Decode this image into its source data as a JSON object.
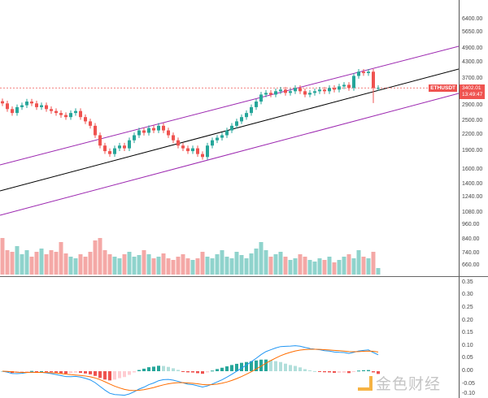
{
  "symbol": "ETHUSDT",
  "current_price": "3402.01",
  "countdown": "13:49:47",
  "price_axis": [
    "7800.00",
    "6400.00",
    "5650.00",
    "4900.00",
    "4300.00",
    "3700.00",
    "2900.00",
    "2500.00",
    "2200.00",
    "1900.00",
    "1600.00",
    "1400.00",
    "1240.00",
    "1080.00",
    "960.00",
    "840.00",
    "740.00",
    "660.00"
  ],
  "macd_axis": [
    "0.35",
    "0.30",
    "0.25",
    "0.20",
    "0.15",
    "0.10",
    "0.05",
    "0.00",
    "-0.05",
    "-0.10"
  ],
  "watermark": "金色财经",
  "colors": {
    "up": "#26a69a",
    "down": "#ef5350",
    "channel": "#9c27b0",
    "mid": "#000000",
    "macd": "#2196f3",
    "signal": "#ff6d00"
  },
  "chart_data": {
    "type": "candlestick",
    "closes": [
      2950,
      2800,
      2700,
      2850,
      2900,
      3000,
      2950,
      2850,
      2900,
      2800,
      2750,
      2700,
      2650,
      2600,
      2700,
      2750,
      2600,
      2500,
      2400,
      2200,
      2000,
      1900,
      1850,
      1950,
      2000,
      1950,
      2100,
      2200,
      2300,
      2250,
      2350,
      2300,
      2400,
      2300,
      2200,
      2100,
      2000,
      1950,
      1900,
      1950,
      1850,
      1800,
      2000,
      2100,
      2150,
      2200,
      2300,
      2400,
      2500,
      2600,
      2700,
      2850,
      3000,
      3200,
      3250,
      3200,
      3300,
      3350,
      3250,
      3300,
      3400,
      3300,
      3200,
      3250,
      3300,
      3350,
      3300,
      3400,
      3350,
      3450,
      3500,
      3400,
      3800,
      3950,
      3900,
      3950,
      3400,
      3402
    ],
    "volumes": [
      45,
      30,
      28,
      35,
      25,
      30,
      22,
      28,
      32,
      25,
      30,
      28,
      40,
      26,
      22,
      20,
      25,
      22,
      28,
      42,
      45,
      30,
      25,
      22,
      20,
      25,
      28,
      22,
      24,
      30,
      25,
      20,
      22,
      26,
      20,
      18,
      22,
      25,
      20,
      18,
      20,
      28,
      22,
      20,
      25,
      30,
      22,
      20,
      28,
      24,
      20,
      26,
      32,
      40,
      30,
      22,
      25,
      28,
      22,
      18,
      20,
      25,
      22,
      18,
      16,
      20,
      18,
      22,
      15,
      18,
      22,
      25,
      20,
      30,
      22,
      20,
      28,
      8
    ]
  }
}
